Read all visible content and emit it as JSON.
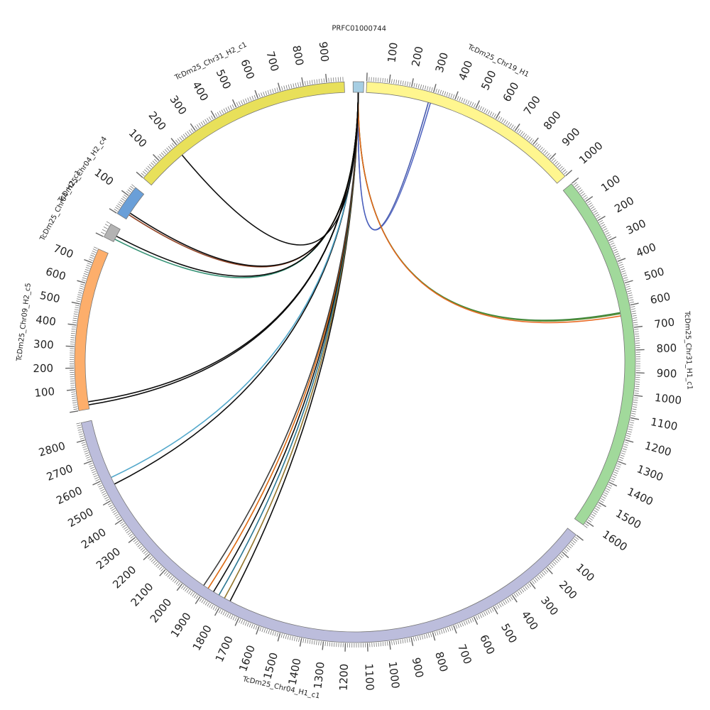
{
  "diagram": {
    "type": "circos",
    "chromosomes": [
      {
        "id": "PRFC01000744",
        "label": "PRFC01000744",
        "length": 10,
        "color": "#a6cee3",
        "label_every": 0
      },
      {
        "id": "chr19_h1",
        "label": "TcDm25_Chr19_H1",
        "length": 1000,
        "color": "#fff68f",
        "label_every": 100
      },
      {
        "id": "chr31_h1",
        "label": "TcDm25_Chr31_H1_c1",
        "length": 1620,
        "color": "#a1d99b",
        "label_every": 100
      },
      {
        "id": "chr04_h1",
        "label": "TcDm25_Chr04_H1_c1",
        "length": 2880,
        "color": "#bcbddc",
        "label_every": 100
      },
      {
        "id": "chr09_h2",
        "label": "TcDm25_Chr09_H2_c5",
        "length": 770,
        "color": "#fdae6b",
        "label_every": 100
      },
      {
        "id": "chr04_c1",
        "label": "TcDm25_Chr04_H2_c1",
        "length": 50,
        "color": "#b3b3b3",
        "label_every": 0
      },
      {
        "id": "chr04_h2",
        "label": "TcDm25_Chr04_H2_c4",
        "length": 150,
        "color": "#6a9fd8",
        "label_every": 100
      },
      {
        "id": "chr31_h2",
        "label": "TcDm25_Chr31_H2_c1",
        "length": 975,
        "color": "#e8e05a",
        "label_every": 100
      }
    ],
    "links": [
      {
        "from": "PRFC01000744",
        "to": "chr19_h1",
        "to_pos": 290,
        "color": "#3b4fa8"
      },
      {
        "from": "PRFC01000744",
        "to": "chr19_h1",
        "to_pos": 300,
        "color": "#4a5fbf"
      },
      {
        "from": "PRFC01000744",
        "to": "chr31_h1",
        "to_pos": 625,
        "color": "#2e7d32"
      },
      {
        "from": "PRFC01000744",
        "to": "chr31_h1",
        "to_pos": 630,
        "color": "#558b2f"
      },
      {
        "from": "PRFC01000744",
        "to": "chr31_h1",
        "to_pos": 640,
        "color": "#e8641b"
      },
      {
        "from": "PRFC01000744",
        "to": "chr04_h1",
        "to_pos": 1770,
        "color": "#000000"
      },
      {
        "from": "PRFC01000744",
        "to": "chr04_h1",
        "to_pos": 1800,
        "color": "#8c6d1f"
      },
      {
        "from": "PRFC01000744",
        "to": "chr04_h1",
        "to_pos": 1830,
        "color": "#1f6f8b"
      },
      {
        "from": "PRFC01000744",
        "to": "chr04_h1",
        "to_pos": 1860,
        "color": "#000000"
      },
      {
        "from": "PRFC01000744",
        "to": "chr04_h1",
        "to_pos": 1890,
        "color": "#d95f02"
      },
      {
        "from": "PRFC01000744",
        "to": "chr04_h1",
        "to_pos": 1915,
        "color": "#333333"
      },
      {
        "from": "PRFC01000744",
        "to": "chr04_h1",
        "to_pos": 2560,
        "color": "#000000"
      },
      {
        "from": "PRFC01000744",
        "to": "chr04_h1",
        "to_pos": 2595,
        "color": "#4aa3c8"
      },
      {
        "from": "PRFC01000744",
        "to": "chr09_h2",
        "to_pos": 20,
        "color": "#000000"
      },
      {
        "from": "PRFC01000744",
        "to": "chr09_h2",
        "to_pos": 35,
        "color": "#000000"
      },
      {
        "from": "PRFC01000744",
        "to": "chr04_c1",
        "to_pos": 10,
        "color": "#2a8c6e"
      },
      {
        "from": "PRFC01000744",
        "to": "chr04_c1",
        "to_pos": 22,
        "color": "#000000"
      },
      {
        "from": "PRFC01000744",
        "to": "chr04_h2",
        "to_pos": 25,
        "color": "#8b3a1a"
      },
      {
        "from": "PRFC01000744",
        "to": "chr04_h2",
        "to_pos": 35,
        "color": "#000000"
      },
      {
        "from": "PRFC01000744",
        "to": "chr31_h2",
        "to_pos": 190,
        "color": "#000000"
      }
    ]
  }
}
